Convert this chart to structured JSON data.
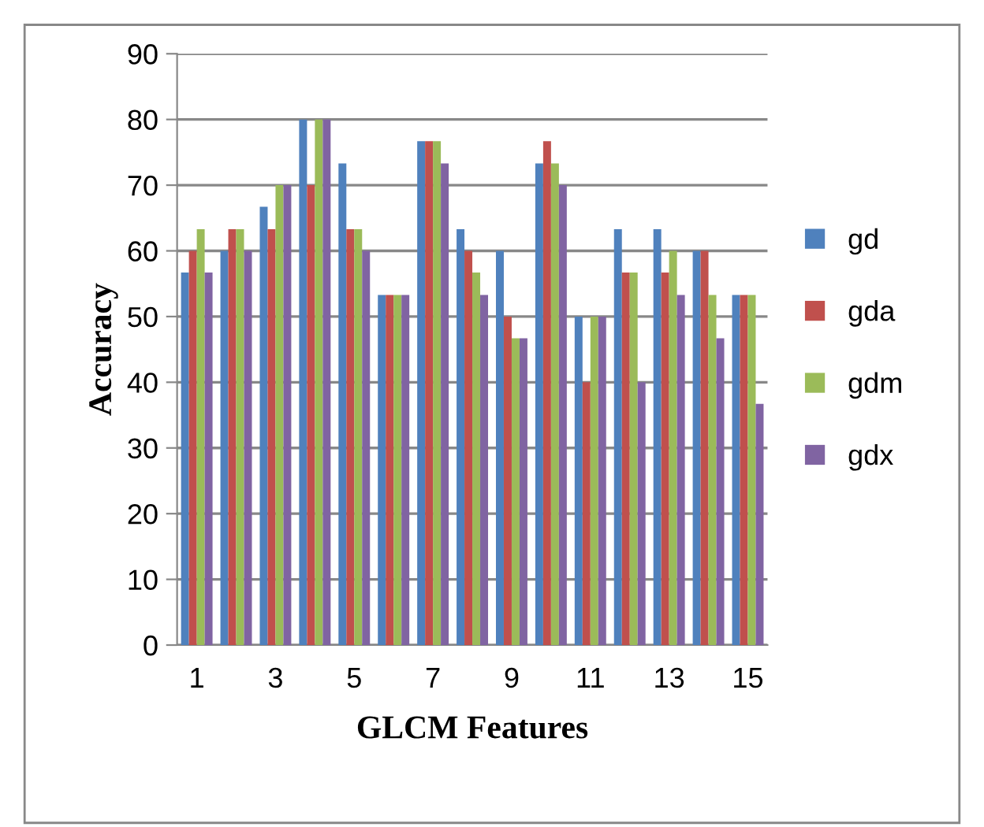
{
  "chart_data": {
    "type": "bar",
    "xlabel": "GLCM Features",
    "ylabel": "Accuracy",
    "categories": [
      "1",
      null,
      "3",
      null,
      "5",
      null,
      "7",
      null,
      "9",
      null,
      "11",
      null,
      "13",
      null,
      "15"
    ],
    "series": [
      {
        "name": "gd",
        "color": "#4f81bd",
        "values": [
          56.7,
          60,
          66.7,
          80,
          73.3,
          53.3,
          76.7,
          63.3,
          60,
          73.3,
          50,
          63.3,
          63.3,
          60,
          53.3
        ]
      },
      {
        "name": "gda",
        "color": "#c0504d",
        "values": [
          60,
          63.3,
          63.3,
          70,
          63.3,
          53.3,
          76.7,
          60,
          50,
          76.7,
          40,
          56.7,
          56.7,
          60,
          53.3
        ]
      },
      {
        "name": "gdm",
        "color": "#9bbb59",
        "values": [
          63.3,
          63.3,
          70,
          80,
          63.3,
          53.3,
          76.7,
          56.7,
          46.7,
          73.3,
          50,
          56.7,
          60,
          53.3,
          53.3
        ]
      },
      {
        "name": "gdx",
        "color": "#8064a2",
        "values": [
          56.7,
          60,
          70,
          80,
          60,
          53.3,
          73.3,
          53.3,
          46.7,
          70,
          50,
          40,
          53.3,
          46.7,
          36.7
        ]
      }
    ],
    "ylim": [
      0,
      90
    ],
    "yticks": [
      0,
      10,
      20,
      30,
      40,
      50,
      60,
      70,
      80,
      90
    ],
    "grid": "y",
    "legend": "right"
  }
}
